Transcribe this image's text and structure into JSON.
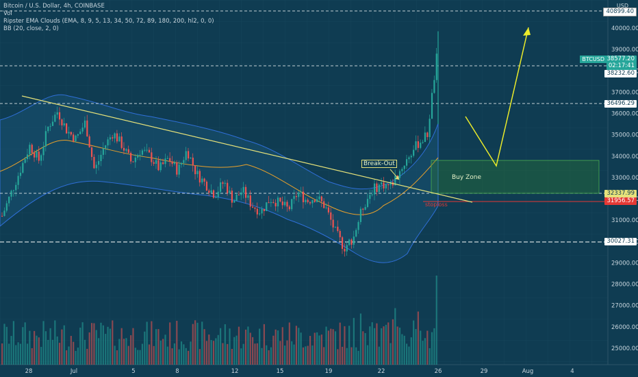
{
  "legend": {
    "title": "Bitcoin / U.S. Dollar, 4h, COINBASE",
    "vol": "Vol",
    "ema": "Ripster EMA Clouds (EMA, 8, 9, 5, 13, 34, 50, 72, 89, 180, 200, hl2, 0, 0)",
    "bb": "BB (20, close, 2, 0)"
  },
  "currency": "USD",
  "ticker": "BTCUSD",
  "price_labels": {
    "top": "40899.40",
    "current_price": "38577.20",
    "countdown": "02:17:41",
    "line1": "38232.60",
    "line2": "36496.29",
    "line3": "32337.99",
    "stoploss": "31956.57",
    "line4": "30027.31"
  },
  "annotations": {
    "breakout": "Break-Out",
    "buy_zone": "Buy Zone",
    "stoploss": "stoploss"
  },
  "colors": {
    "bg": "#0f3c52",
    "up": "#26a69a",
    "down": "#ef5350",
    "trend": "#e6e27a",
    "buyzone": "#2e7d32",
    "stop": "#e53935"
  },
  "chart_data": {
    "type": "candlestick",
    "timeframe": "4h",
    "y_axis_ticks": [
      "40000.00",
      "39000.00",
      "38000.00",
      "37000.00",
      "36000.00",
      "35000.00",
      "34000.00",
      "33000.00",
      "32000.00",
      "31000.00",
      "30000.00",
      "29000.00",
      "28000.00",
      "27000.00",
      "26000.00",
      "25000.00"
    ],
    "x_axis_ticks": [
      "28",
      "Jul",
      "5",
      "8",
      "12",
      "15",
      "19",
      "22",
      "26",
      "29",
      "Aug",
      "4"
    ],
    "horizontal_levels": [
      40899.4,
      38232.6,
      36496.29,
      32337.99,
      31956.57,
      30027.31
    ],
    "buy_zone": [
      32337.99,
      33850
    ],
    "price_path": [
      [
        0,
        31200
      ],
      [
        4,
        33400
      ],
      [
        6,
        34500
      ],
      [
        8,
        33800
      ],
      [
        10,
        35400
      ],
      [
        12,
        36100
      ],
      [
        14,
        35200
      ],
      [
        16,
        34800
      ],
      [
        18,
        35600
      ],
      [
        20,
        33300
      ],
      [
        22,
        34400
      ],
      [
        24,
        35100
      ],
      [
        26,
        34500
      ],
      [
        28,
        33700
      ],
      [
        30,
        34300
      ],
      [
        32,
        34000
      ],
      [
        34,
        33400
      ],
      [
        36,
        33900
      ],
      [
        38,
        33300
      ],
      [
        40,
        34300
      ],
      [
        42,
        33200
      ],
      [
        44,
        32700
      ],
      [
        46,
        32200
      ],
      [
        48,
        32800
      ],
      [
        50,
        31900
      ],
      [
        52,
        32400
      ],
      [
        54,
        31700
      ],
      [
        56,
        31400
      ],
      [
        58,
        32000
      ],
      [
        60,
        31800
      ],
      [
        62,
        31500
      ],
      [
        64,
        32300
      ],
      [
        66,
        31900
      ],
      [
        68,
        32100
      ],
      [
        70,
        31600
      ],
      [
        72,
        30500
      ],
      [
        74,
        29700
      ],
      [
        76,
        30200
      ],
      [
        78,
        31600
      ],
      [
        80,
        32400
      ],
      [
        82,
        32700
      ],
      [
        84,
        32600
      ],
      [
        86,
        33300
      ],
      [
        88,
        34000
      ],
      [
        90,
        34600
      ],
      [
        92,
        35000
      ],
      [
        94,
        38577
      ]
    ]
  }
}
